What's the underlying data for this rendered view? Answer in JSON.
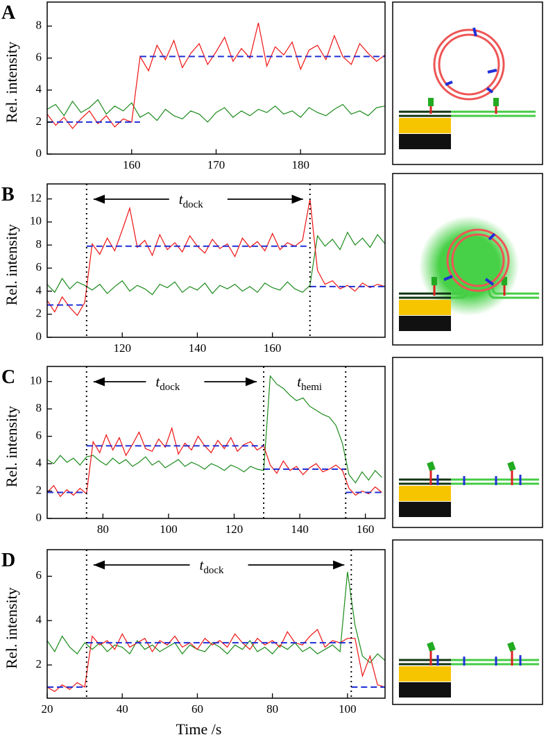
{
  "chart_data": [
    {
      "type": "line",
      "label": "A",
      "ylabel": "Rel. intensity",
      "xlim": [
        150,
        190
      ],
      "xticks": [
        160,
        170,
        180
      ],
      "ylim": [
        0,
        9.5
      ],
      "yticks": [
        0,
        2,
        4,
        6,
        8
      ],
      "x": [
        150,
        151,
        152,
        153,
        154,
        155,
        156,
        157,
        158,
        159,
        160,
        161,
        162,
        163,
        164,
        165,
        166,
        167,
        168,
        169,
        170,
        171,
        172,
        173,
        174,
        175,
        176,
        177,
        178,
        179,
        180,
        181,
        182,
        183,
        184,
        185,
        186,
        187,
        188,
        189,
        190
      ],
      "series": [
        {
          "color": "#1a8a1a",
          "values": [
            2.8,
            3.1,
            2.4,
            3.3,
            2.6,
            2.9,
            3.4,
            2.5,
            3.0,
            2.7,
            3.2,
            2.3,
            2.6,
            2.1,
            2.8,
            2.4,
            2.2,
            2.7,
            2.5,
            2.0,
            2.6,
            2.9,
            2.3,
            2.7,
            2.4,
            2.8,
            2.6,
            3.0,
            2.5,
            2.7,
            2.3,
            2.9,
            2.6,
            2.4,
            2.8,
            3.1,
            2.5,
            2.7,
            2.4,
            2.9,
            3.0
          ]
        },
        {
          "color": "#ee1111",
          "values": [
            2.5,
            1.8,
            2.3,
            1.6,
            2.2,
            2.7,
            1.9,
            2.4,
            1.7,
            2.2,
            2.0,
            6.1,
            5.2,
            6.8,
            5.9,
            7.1,
            5.4,
            6.3,
            6.9,
            5.6,
            6.4,
            7.3,
            5.8,
            6.6,
            6.0,
            8.2,
            5.5,
            6.7,
            6.2,
            7.0,
            5.3,
            6.5,
            6.8,
            5.9,
            7.4,
            6.1,
            5.6,
            6.9,
            6.3,
            5.8,
            6.2
          ]
        },
        {
          "color": "#1f2fd6",
          "dash": true,
          "x": [
            150,
            161
          ],
          "values": [
            2,
            2
          ]
        },
        {
          "color": "#1f2fd6",
          "dash": true,
          "x": [
            161,
            190
          ],
          "values": [
            6.1,
            6.1
          ]
        }
      ]
    },
    {
      "type": "line",
      "label": "B",
      "ylabel": "Rel. intensity",
      "xlim": [
        100,
        190
      ],
      "xticks": [
        120,
        140,
        160
      ],
      "ylim": [
        0,
        13.3
      ],
      "yticks": [
        0,
        2,
        4,
        6,
        8,
        10,
        12
      ],
      "x": [
        100,
        102,
        104,
        106,
        108,
        110,
        112,
        114,
        116,
        118,
        120,
        122,
        124,
        126,
        128,
        130,
        132,
        134,
        136,
        138,
        140,
        142,
        144,
        146,
        148,
        150,
        152,
        154,
        156,
        158,
        160,
        162,
        164,
        166,
        168,
        170,
        172,
        174,
        176,
        178,
        180,
        182,
        184,
        186,
        188,
        190
      ],
      "series": [
        {
          "color": "#1a8a1a",
          "values": [
            4.6,
            3.9,
            5.1,
            4.2,
            4.8,
            4.5,
            4.1,
            4.6,
            3.8,
            4.4,
            4.9,
            4.0,
            4.5,
            4.2,
            3.7,
            4.6,
            4.3,
            4.8,
            3.9,
            4.4,
            4.1,
            4.7,
            3.8,
            4.5,
            4.2,
            4.6,
            4.0,
            4.4,
            3.9,
            4.7,
            4.3,
            4.1,
            4.8,
            4.2,
            3.9,
            4.5,
            8.8,
            7.9,
            8.5,
            7.6,
            9.1,
            8.0,
            8.6,
            7.8,
            8.9,
            8.1
          ]
        },
        {
          "color": "#ee1111",
          "values": [
            3.2,
            2.2,
            3.5,
            2.6,
            1.9,
            3.0,
            8.1,
            7.2,
            8.6,
            7.5,
            9.3,
            11.2,
            7.8,
            8.4,
            7.1,
            8.9,
            7.6,
            8.2,
            7.4,
            8.8,
            7.9,
            7.3,
            8.5,
            7.7,
            8.1,
            7.0,
            8.6,
            7.8,
            8.3,
            7.5,
            9.0,
            7.6,
            8.2,
            7.9,
            8.4,
            12.0,
            5.8,
            4.6,
            4.9,
            4.2,
            4.5,
            4.0,
            4.7,
            4.3,
            4.6,
            4.4
          ]
        },
        {
          "color": "#1f2fd6",
          "dash": true,
          "x": [
            100,
            110.5
          ],
          "values": [
            2.8,
            2.8
          ]
        },
        {
          "color": "#1f2fd6",
          "dash": true,
          "x": [
            110.5,
            170
          ],
          "values": [
            7.9,
            7.9
          ]
        },
        {
          "color": "#1f2fd6",
          "dash": true,
          "x": [
            170,
            190
          ],
          "values": [
            4.4,
            4.4
          ]
        }
      ],
      "events": [
        110.5,
        170
      ],
      "annotations": [
        {
          "symbol": "t",
          "subscript": "dock",
          "arrow": true
        }
      ]
    },
    {
      "type": "line",
      "label": "C",
      "ylabel": "Rel. intensity",
      "xlim": [
        63,
        166
      ],
      "xticks": [
        80,
        100,
        120,
        140,
        160
      ],
      "ylim": [
        0,
        11.1
      ],
      "yticks": [
        0,
        2,
        4,
        6,
        8,
        10
      ],
      "x": [
        63,
        65,
        67,
        69,
        71,
        73,
        75,
        77,
        79,
        81,
        83,
        85,
        87,
        89,
        91,
        93,
        95,
        97,
        99,
        101,
        103,
        105,
        107,
        109,
        111,
        113,
        115,
        117,
        119,
        121,
        123,
        125,
        127,
        129,
        131,
        133,
        135,
        137,
        139,
        141,
        143,
        145,
        147,
        149,
        151,
        153,
        155,
        157,
        159,
        161,
        163,
        165
      ],
      "series": [
        {
          "color": "#1a8a1a",
          "values": [
            4.3,
            4.0,
            4.6,
            4.1,
            4.4,
            3.9,
            4.5,
            4.6,
            4.2,
            3.9,
            4.4,
            4.0,
            4.3,
            3.8,
            4.1,
            4.5,
            3.9,
            4.2,
            3.7,
            4.0,
            4.3,
            3.8,
            4.1,
            3.9,
            3.6,
            4.0,
            3.8,
            3.5,
            3.9,
            3.7,
            3.4,
            3.8,
            3.6,
            3.5,
            10.4,
            9.8,
            9.5,
            9.0,
            8.6,
            8.8,
            8.2,
            7.9,
            7.6,
            7.4,
            6.8,
            5.5,
            3.2,
            2.6,
            3.4,
            2.8,
            3.5,
            3.0
          ]
        },
        {
          "color": "#ee1111",
          "values": [
            1.9,
            2.4,
            1.6,
            2.1,
            1.7,
            2.2,
            1.8,
            5.6,
            4.8,
            6.1,
            5.0,
            5.9,
            4.6,
            5.4,
            6.3,
            5.1,
            4.9,
            5.8,
            5.2,
            6.6,
            4.7,
            5.5,
            5.0,
            6.0,
            5.3,
            4.8,
            5.7,
            5.1,
            5.9,
            4.9,
            5.4,
            5.6,
            5.0,
            5.3,
            3.9,
            3.3,
            4.2,
            3.5,
            3.8,
            3.2,
            3.7,
            4.0,
            3.4,
            3.6,
            3.9,
            3.5,
            2.2,
            1.7,
            2.0,
            1.8,
            2.3,
            1.9
          ]
        },
        {
          "color": "#1f2fd6",
          "dash": true,
          "x": [
            63,
            75
          ],
          "values": [
            1.9,
            1.9
          ]
        },
        {
          "color": "#1f2fd6",
          "dash": true,
          "x": [
            75,
            129
          ],
          "values": [
            5.3,
            5.3
          ]
        },
        {
          "color": "#1f2fd6",
          "dash": true,
          "x": [
            129,
            154
          ],
          "values": [
            3.6,
            3.6
          ]
        },
        {
          "color": "#1f2fd6",
          "dash": true,
          "x": [
            154,
            165
          ],
          "values": [
            1.9,
            1.9
          ]
        }
      ],
      "events": [
        75,
        129,
        154
      ],
      "annotations": [
        {
          "symbol": "t",
          "subscript": "dock",
          "arrow": true
        },
        {
          "symbol": "t",
          "subscript": "hemi",
          "arrow": false
        }
      ]
    },
    {
      "type": "line",
      "label": "D",
      "ylabel": "Rel. intensity",
      "xlabel": "Time /s",
      "xlim": [
        20,
        110
      ],
      "xticks": [
        20,
        40,
        60,
        80,
        100
      ],
      "ylim": [
        0.5,
        7.2
      ],
      "yticks": [
        2,
        4,
        6
      ],
      "x": [
        20,
        22,
        24,
        26,
        28,
        30,
        32,
        34,
        36,
        38,
        40,
        42,
        44,
        46,
        48,
        50,
        52,
        54,
        56,
        58,
        60,
        62,
        64,
        66,
        68,
        70,
        72,
        74,
        76,
        78,
        80,
        82,
        84,
        86,
        88,
        90,
        92,
        94,
        96,
        98,
        100,
        102,
        104,
        106,
        108,
        110
      ],
      "series": [
        {
          "color": "#1a8a1a",
          "values": [
            3.1,
            2.6,
            3.3,
            2.8,
            2.5,
            3.0,
            2.7,
            3.0,
            2.6,
            2.9,
            2.8,
            2.5,
            3.1,
            2.7,
            2.9,
            2.6,
            2.8,
            3.0,
            2.5,
            2.9,
            2.7,
            2.6,
            3.0,
            2.8,
            2.5,
            2.9,
            2.7,
            3.1,
            2.6,
            2.8,
            2.5,
            2.9,
            2.7,
            3.0,
            2.6,
            2.8,
            2.5,
            2.7,
            2.9,
            2.6,
            6.2,
            3.8,
            2.4,
            2.1,
            2.5,
            2.2
          ]
        },
        {
          "color": "#ee1111",
          "values": [
            1.0,
            0.8,
            1.1,
            0.9,
            1.2,
            1.0,
            3.3,
            2.9,
            3.1,
            2.7,
            3.4,
            2.8,
            3.0,
            3.2,
            2.6,
            3.1,
            2.9,
            3.3,
            2.8,
            3.0,
            2.7,
            3.2,
            2.9,
            3.1,
            2.8,
            3.4,
            3.0,
            2.7,
            3.2,
            2.9,
            3.1,
            2.8,
            3.5,
            3.0,
            2.9,
            3.3,
            3.6,
            2.8,
            3.1,
            3.0,
            3.2,
            3.2,
            1.5,
            2.4,
            1.1,
            1.0
          ]
        },
        {
          "color": "#1f2fd6",
          "dash": true,
          "x": [
            20,
            30.5
          ],
          "values": [
            1.0,
            1.0
          ]
        },
        {
          "color": "#1f2fd6",
          "dash": true,
          "x": [
            30.5,
            101
          ],
          "values": [
            3.0,
            3.0
          ]
        },
        {
          "color": "#1f2fd6",
          "dash": true,
          "x": [
            101,
            110
          ],
          "values": [
            1.0,
            1.0
          ]
        }
      ],
      "events": [
        30.5,
        101
      ],
      "annotations": [
        {
          "symbol": "t",
          "subscript": "dock",
          "arrow": true
        }
      ]
    }
  ]
}
